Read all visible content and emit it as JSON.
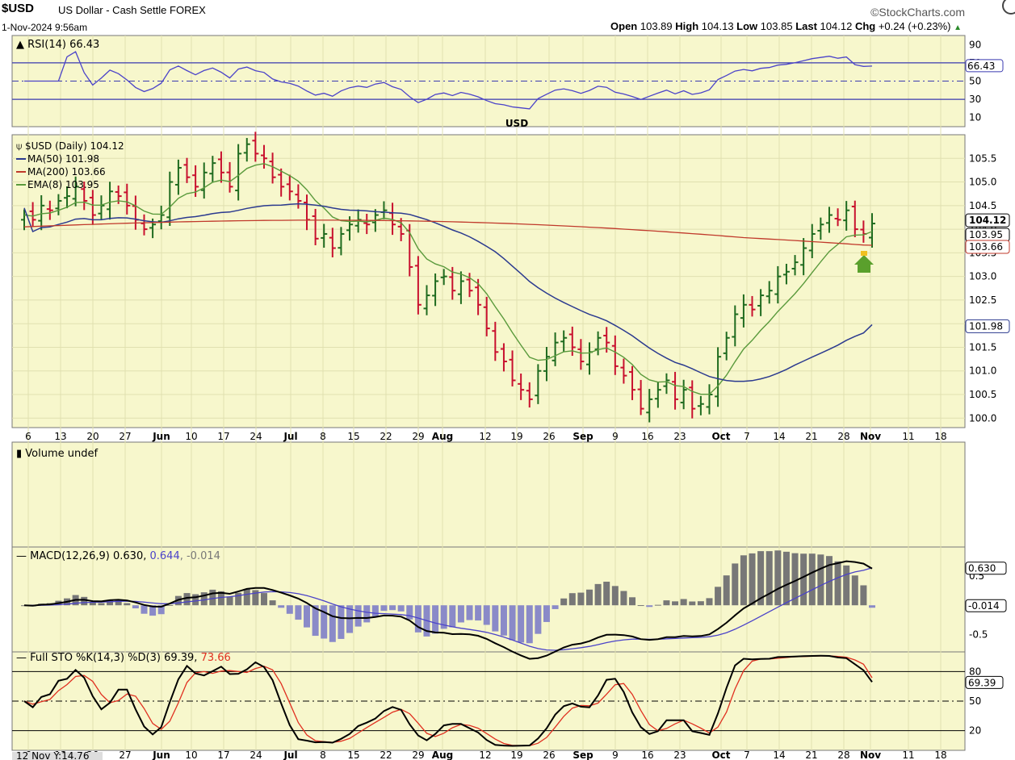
{
  "header": {
    "symbol": "$USD",
    "name": "US Dollar - Cash Settle",
    "exchange": "FOREX",
    "datetime": "1-Nov-2024 9:56am",
    "brand": "©StockCharts.com",
    "open_label": "Open",
    "open": "103.89",
    "high_label": "High",
    "high": "104.13",
    "low_label": "Low",
    "low": "103.85",
    "last_label": "Last",
    "last": "104.12",
    "chg_label": "Chg",
    "chg": "+0.24 (+0.23%)"
  },
  "colors": {
    "panel_bg": "#f7f7cc",
    "up_bar": "#1f6b1f",
    "down_bar": "#c8102e",
    "ma50": "#2b3a8f",
    "ma200": "#c0392b",
    "ema8": "#5a9a3c",
    "rsi": "#4b43c9",
    "macd": "#000000",
    "signal": "#4b43c9",
    "hist": "#8a8ac8",
    "stoK": "#000000",
    "stoD": "#e03020",
    "watermark": "#9a3fe0"
  },
  "rsi_panel": {
    "legend": "RSI(14) 66.43",
    "watermark": "USD",
    "current_label": "66.43",
    "ticks": [
      "90",
      "70",
      "50",
      "30",
      "10"
    ]
  },
  "price_panel": {
    "legend_title": "$USD (Daily) 104.12",
    "legend_ma50": "MA(50) 101.98",
    "legend_ma200": "MA(200) 103.66",
    "legend_ema8": "EMA(8) 103.95",
    "ticks": [
      "105.5",
      "105.0",
      "104.5",
      "104.0",
      "103.5",
      "103.0",
      "102.5",
      "102.0",
      "101.5",
      "101.0",
      "100.5",
      "100.0"
    ],
    "tags": [
      "104.12",
      "103.95",
      "103.66",
      "101.98"
    ]
  },
  "x_axis_labels": [
    "6",
    "13",
    "20",
    "27",
    "Jun",
    "10",
    "17",
    "24",
    "Jul",
    "8",
    "15",
    "22",
    "29",
    "Aug",
    "12",
    "19",
    "26",
    "Sep",
    "9",
    "16",
    "23",
    "Oct",
    "7",
    "14",
    "21",
    "28",
    "Nov",
    "11",
    "18"
  ],
  "x_axis_bold": [
    "Jun",
    "Jul",
    "Aug",
    "Sep",
    "Oct",
    "Nov"
  ],
  "x_axis_bottom_first": "12 Nov Y:14.76",
  "volume_panel": {
    "legend": "Volume undef"
  },
  "macd_panel": {
    "legend_main": "MACD(12,26,9) 0.630, ",
    "legend_signal": "0.644",
    "legend_hist": ", -0.014",
    "ticks": [
      "0.5",
      "-0.5"
    ],
    "tags": [
      "0.630",
      "-0.014"
    ]
  },
  "sto_panel": {
    "legend_main": "Full STO %K(14,3) %D(3) 69.39, ",
    "legend_d": "73.66",
    "ticks": [
      "80",
      "50",
      "20"
    ],
    "tags": [
      "69.39"
    ]
  },
  "chart_data": {
    "type": "bar",
    "title": "$USD US Dollar - Cash Settle FOREX",
    "ylim": [
      99.8,
      106.0
    ],
    "series": [
      {
        "name": "$USD (Daily)",
        "kind": "ohlc",
        "close": [
          104.3,
          104.2,
          104.5,
          104.4,
          104.6,
          104.7,
          104.9,
          104.6,
          104.3,
          104.5,
          104.8,
          104.7,
          104.5,
          104.2,
          104.0,
          104.1,
          104.3,
          105.0,
          105.3,
          105.1,
          104.9,
          105.2,
          105.4,
          105.2,
          104.9,
          105.6,
          105.8,
          105.6,
          105.5,
          105.1,
          104.9,
          104.8,
          104.6,
          104.2,
          103.8,
          103.9,
          103.6,
          103.9,
          104.1,
          104.2,
          104.1,
          104.3,
          104.4,
          104.1,
          103.9,
          103.2,
          102.4,
          102.6,
          102.9,
          103.0,
          102.7,
          102.9,
          102.7,
          102.4,
          101.9,
          101.4,
          101.2,
          100.8,
          100.6,
          100.4,
          101.0,
          101.3,
          101.6,
          101.7,
          101.5,
          101.2,
          101.4,
          101.7,
          101.6,
          101.1,
          100.9,
          100.6,
          100.2,
          100.4,
          100.6,
          100.8,
          100.4,
          100.6,
          100.2,
          100.3,
          100.5,
          101.3,
          101.7,
          102.2,
          102.4,
          102.3,
          102.6,
          102.7,
          103.0,
          103.1,
          103.3,
          103.6,
          103.9,
          104.1,
          104.3,
          104.2,
          104.4,
          104.0,
          103.9,
          104.12
        ]
      },
      {
        "name": "MA(50)",
        "last": 101.98
      },
      {
        "name": "MA(200)",
        "last": 103.66
      },
      {
        "name": "EMA(8)",
        "last": 103.95
      }
    ],
    "indicators": {
      "RSI(14)": 66.43,
      "MACD(12,26,9)": [
        0.63,
        0.644,
        -0.014
      ],
      "Full STO %K(14,3) %D(3)": [
        69.39,
        73.66
      ]
    }
  }
}
